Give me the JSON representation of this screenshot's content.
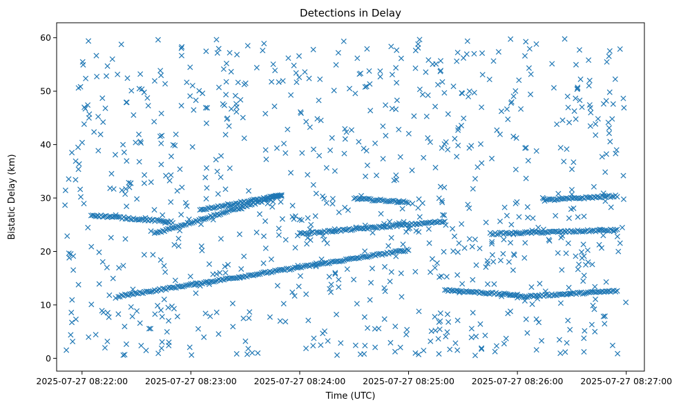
{
  "chart_data": {
    "type": "scatter",
    "title": "Detections in Delay",
    "xlabel": "Time (UTC)",
    "ylabel": "Bistatic Delay (km)",
    "marker": "x",
    "color": "#1f77b4",
    "xlim": [
      "2025-07-27 08:21:46",
      "2025-07-27 08:27:10"
    ],
    "ylim": [
      -2.4,
      62.8
    ],
    "x_ticks": [
      "2025-07-27 08:22:00",
      "2025-07-27 08:23:00",
      "2025-07-27 08:24:00",
      "2025-07-27 08:25:00",
      "2025-07-27 08:26:00",
      "2025-07-27 08:27:00"
    ],
    "y_ticks": [
      0,
      10,
      20,
      30,
      40,
      50,
      60
    ],
    "grid": false,
    "tracks": [
      {
        "x_start": "2025-07-27 08:22:20",
        "x_end": "2025-07-27 08:25:00",
        "y_start": 11.6,
        "y_end": 20.3
      },
      {
        "x_start": "2025-07-27 08:25:20",
        "x_end": "2025-07-27 08:26:00",
        "y_start": 12.8,
        "y_end": 11.8
      },
      {
        "x_start": "2025-07-27 08:26:00",
        "x_end": "2025-07-27 08:26:55",
        "y_start": 11.5,
        "y_end": 12.6
      },
      {
        "x_start": "2025-07-27 08:22:40",
        "x_end": "2025-07-27 08:23:50",
        "y_start": 23.4,
        "y_end": 30.5
      },
      {
        "x_start": "2025-07-27 08:23:05",
        "x_end": "2025-07-27 08:23:50",
        "y_start": 27.8,
        "y_end": 30.5
      },
      {
        "x_start": "2025-07-27 08:24:30",
        "x_end": "2025-07-27 08:25:00",
        "y_start": 29.9,
        "y_end": 29.2
      },
      {
        "x_start": "2025-07-27 08:24:00",
        "x_end": "2025-07-27 08:25:20",
        "y_start": 23.3,
        "y_end": 25.6
      },
      {
        "x_start": "2025-07-27 08:22:05",
        "x_end": "2025-07-27 08:22:50",
        "y_start": 26.8,
        "y_end": 25.5
      },
      {
        "x_start": "2025-07-27 08:26:15",
        "x_end": "2025-07-27 08:26:55",
        "y_start": 29.6,
        "y_end": 30.4
      },
      {
        "x_start": "2025-07-27 08:25:45",
        "x_end": "2025-07-27 08:26:55",
        "y_start": 23.3,
        "y_end": 24.0
      }
    ],
    "noise": {
      "x_range": [
        "2025-07-27 08:21:50",
        "2025-07-27 08:27:00"
      ],
      "y_range": [
        0.5,
        59.9
      ],
      "count": 850
    }
  }
}
